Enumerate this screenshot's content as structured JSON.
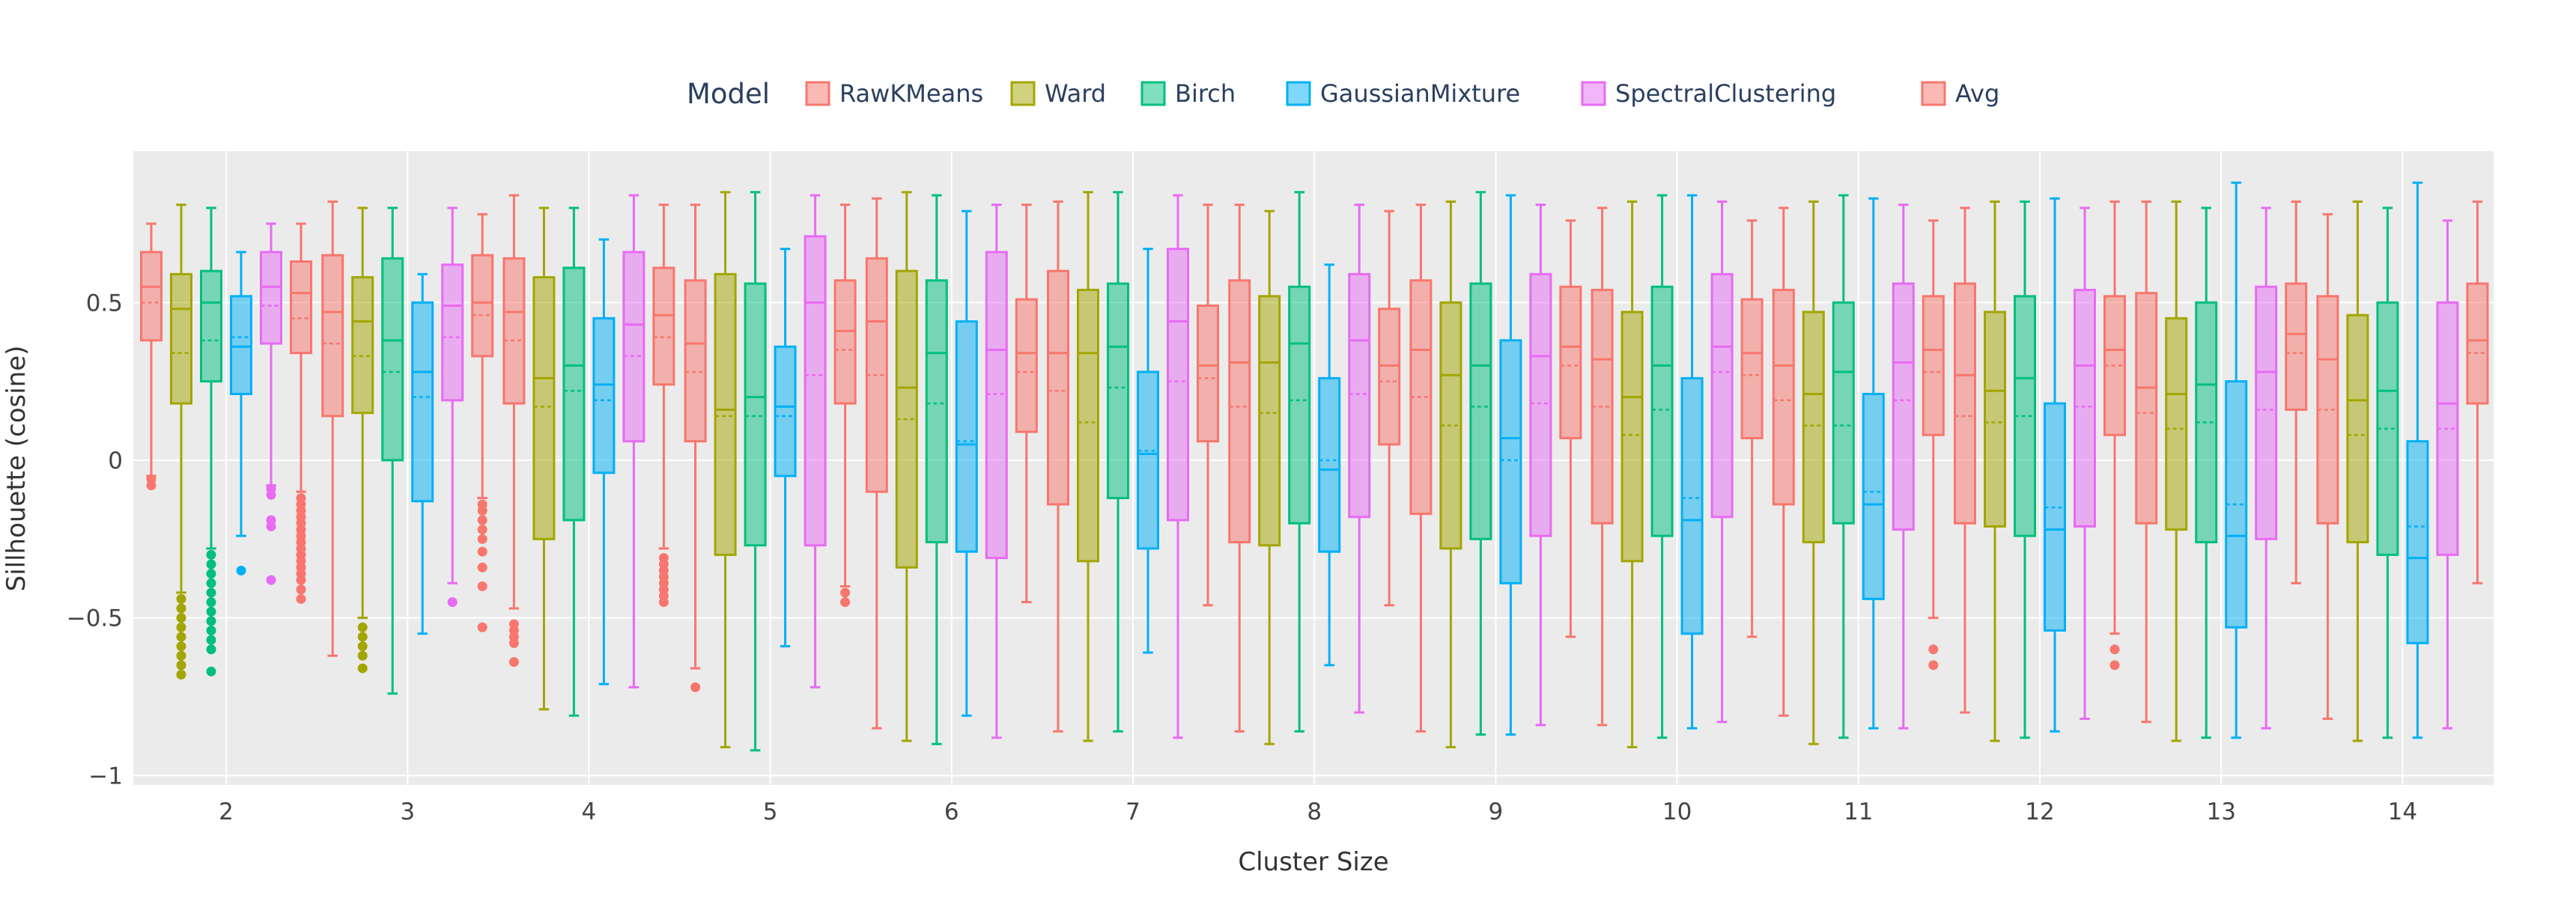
{
  "chart_data": {
    "type": "box",
    "xlabel": "Cluster Size",
    "ylabel": "Sillhouette (cosine)",
    "legend_title": "Model",
    "legend_position": "top",
    "ylim": [
      -1.03,
      0.98
    ],
    "yticks": [
      -1,
      -0.5,
      0,
      0.5
    ],
    "ytick_labels": [
      "−1",
      "−0.5",
      "0",
      "0.5"
    ],
    "grid": true,
    "background_color": "#EBEBEB",
    "categories": [
      "2",
      "3",
      "4",
      "5",
      "6",
      "7",
      "8",
      "9",
      "10",
      "11",
      "12",
      "13",
      "14"
    ],
    "series": [
      {
        "name": "RawKMeans",
        "color": "#F8766D",
        "boxes": [
          {
            "lower": -0.05,
            "q1": 0.38,
            "median": 0.55,
            "q3": 0.66,
            "upper": 0.75,
            "mean": 0.5,
            "outliers": [
              -0.06,
              -0.08
            ]
          },
          {
            "lower": -0.62,
            "q1": 0.14,
            "median": 0.47,
            "q3": 0.65,
            "upper": 0.82,
            "mean": 0.37,
            "outliers": []
          },
          {
            "lower": -0.47,
            "q1": 0.18,
            "median": 0.47,
            "q3": 0.64,
            "upper": 0.84,
            "mean": 0.38,
            "outliers": [
              -0.52,
              -0.54,
              -0.56,
              -0.58,
              -0.64
            ]
          },
          {
            "lower": -0.66,
            "q1": 0.06,
            "median": 0.37,
            "q3": 0.57,
            "upper": 0.81,
            "mean": 0.28,
            "outliers": [
              -0.72
            ]
          },
          {
            "lower": -0.85,
            "q1": -0.1,
            "median": 0.44,
            "q3": 0.64,
            "upper": 0.83,
            "mean": 0.27,
            "outliers": []
          },
          {
            "lower": -0.86,
            "q1": -0.14,
            "median": 0.34,
            "q3": 0.6,
            "upper": 0.82,
            "mean": 0.22,
            "outliers": []
          },
          {
            "lower": -0.86,
            "q1": -0.26,
            "median": 0.31,
            "q3": 0.57,
            "upper": 0.81,
            "mean": 0.17,
            "outliers": []
          },
          {
            "lower": -0.86,
            "q1": -0.17,
            "median": 0.35,
            "q3": 0.57,
            "upper": 0.81,
            "mean": 0.2,
            "outliers": []
          },
          {
            "lower": -0.84,
            "q1": -0.2,
            "median": 0.32,
            "q3": 0.54,
            "upper": 0.8,
            "mean": 0.17,
            "outliers": []
          },
          {
            "lower": -0.81,
            "q1": -0.14,
            "median": 0.3,
            "q3": 0.54,
            "upper": 0.8,
            "mean": 0.19,
            "outliers": []
          },
          {
            "lower": -0.8,
            "q1": -0.2,
            "median": 0.27,
            "q3": 0.56,
            "upper": 0.8,
            "mean": 0.14,
            "outliers": []
          },
          {
            "lower": -0.83,
            "q1": -0.2,
            "median": 0.23,
            "q3": 0.53,
            "upper": 0.82,
            "mean": 0.15,
            "outliers": []
          },
          {
            "lower": -0.82,
            "q1": -0.2,
            "median": 0.32,
            "q3": 0.52,
            "upper": 0.78,
            "mean": 0.16,
            "outliers": []
          }
        ]
      },
      {
        "name": "Ward",
        "color": "#A3A500",
        "boxes": [
          {
            "lower": -0.42,
            "q1": 0.18,
            "median": 0.48,
            "q3": 0.59,
            "upper": 0.81,
            "mean": 0.34,
            "outliers": [
              -0.44,
              -0.47,
              -0.5,
              -0.53,
              -0.56,
              -0.59,
              -0.62,
              -0.65,
              -0.68
            ]
          },
          {
            "lower": -0.5,
            "q1": 0.15,
            "median": 0.44,
            "q3": 0.58,
            "upper": 0.8,
            "mean": 0.33,
            "outliers": [
              -0.53,
              -0.56,
              -0.59,
              -0.62,
              -0.66
            ]
          },
          {
            "lower": -0.79,
            "q1": -0.25,
            "median": 0.26,
            "q3": 0.58,
            "upper": 0.8,
            "mean": 0.17,
            "outliers": []
          },
          {
            "lower": -0.91,
            "q1": -0.3,
            "median": 0.16,
            "q3": 0.59,
            "upper": 0.85,
            "mean": 0.14,
            "outliers": []
          },
          {
            "lower": -0.89,
            "q1": -0.34,
            "median": 0.23,
            "q3": 0.6,
            "upper": 0.85,
            "mean": 0.13,
            "outliers": []
          },
          {
            "lower": -0.89,
            "q1": -0.32,
            "median": 0.34,
            "q3": 0.54,
            "upper": 0.85,
            "mean": 0.12,
            "outliers": []
          },
          {
            "lower": -0.9,
            "q1": -0.27,
            "median": 0.31,
            "q3": 0.52,
            "upper": 0.79,
            "mean": 0.15,
            "outliers": []
          },
          {
            "lower": -0.91,
            "q1": -0.28,
            "median": 0.27,
            "q3": 0.5,
            "upper": 0.82,
            "mean": 0.11,
            "outliers": []
          },
          {
            "lower": -0.91,
            "q1": -0.32,
            "median": 0.2,
            "q3": 0.47,
            "upper": 0.82,
            "mean": 0.08,
            "outliers": []
          },
          {
            "lower": -0.9,
            "q1": -0.26,
            "median": 0.21,
            "q3": 0.47,
            "upper": 0.82,
            "mean": 0.11,
            "outliers": []
          },
          {
            "lower": -0.89,
            "q1": -0.21,
            "median": 0.22,
            "q3": 0.47,
            "upper": 0.82,
            "mean": 0.12,
            "outliers": []
          },
          {
            "lower": -0.89,
            "q1": -0.22,
            "median": 0.21,
            "q3": 0.45,
            "upper": 0.82,
            "mean": 0.1,
            "outliers": []
          },
          {
            "lower": -0.89,
            "q1": -0.26,
            "median": 0.19,
            "q3": 0.46,
            "upper": 0.82,
            "mean": 0.08,
            "outliers": []
          }
        ]
      },
      {
        "name": "Birch",
        "color": "#00BF7D",
        "boxes": [
          {
            "lower": -0.28,
            "q1": 0.25,
            "median": 0.5,
            "q3": 0.6,
            "upper": 0.8,
            "mean": 0.38,
            "outliers": [
              -0.3,
              -0.33,
              -0.36,
              -0.39,
              -0.42,
              -0.45,
              -0.48,
              -0.51,
              -0.54,
              -0.57,
              -0.6,
              -0.67
            ]
          },
          {
            "lower": -0.74,
            "q1": 0.0,
            "median": 0.38,
            "q3": 0.64,
            "upper": 0.8,
            "mean": 0.28,
            "outliers": []
          },
          {
            "lower": -0.81,
            "q1": -0.19,
            "median": 0.3,
            "q3": 0.61,
            "upper": 0.8,
            "mean": 0.22,
            "outliers": []
          },
          {
            "lower": -0.92,
            "q1": -0.27,
            "median": 0.2,
            "q3": 0.56,
            "upper": 0.85,
            "mean": 0.14,
            "outliers": []
          },
          {
            "lower": -0.9,
            "q1": -0.26,
            "median": 0.34,
            "q3": 0.57,
            "upper": 0.84,
            "mean": 0.18,
            "outliers": []
          },
          {
            "lower": -0.86,
            "q1": -0.12,
            "median": 0.36,
            "q3": 0.56,
            "upper": 0.85,
            "mean": 0.23,
            "outliers": []
          },
          {
            "lower": -0.86,
            "q1": -0.2,
            "median": 0.37,
            "q3": 0.55,
            "upper": 0.85,
            "mean": 0.19,
            "outliers": []
          },
          {
            "lower": -0.87,
            "q1": -0.25,
            "median": 0.3,
            "q3": 0.56,
            "upper": 0.85,
            "mean": 0.17,
            "outliers": []
          },
          {
            "lower": -0.88,
            "q1": -0.24,
            "median": 0.3,
            "q3": 0.55,
            "upper": 0.84,
            "mean": 0.16,
            "outliers": []
          },
          {
            "lower": -0.88,
            "q1": -0.2,
            "median": 0.28,
            "q3": 0.5,
            "upper": 0.84,
            "mean": 0.11,
            "outliers": []
          },
          {
            "lower": -0.88,
            "q1": -0.24,
            "median": 0.26,
            "q3": 0.52,
            "upper": 0.82,
            "mean": 0.14,
            "outliers": []
          },
          {
            "lower": -0.88,
            "q1": -0.26,
            "median": 0.24,
            "q3": 0.5,
            "upper": 0.8,
            "mean": 0.12,
            "outliers": []
          },
          {
            "lower": -0.88,
            "q1": -0.3,
            "median": 0.22,
            "q3": 0.5,
            "upper": 0.8,
            "mean": 0.1,
            "outliers": []
          }
        ]
      },
      {
        "name": "GaussianMixture",
        "color": "#00B0F6",
        "boxes": [
          {
            "lower": -0.24,
            "q1": 0.21,
            "median": 0.36,
            "q3": 0.52,
            "upper": 0.66,
            "mean": 0.39,
            "outliers": [
              -0.35
            ]
          },
          {
            "lower": -0.55,
            "q1": -0.13,
            "median": 0.28,
            "q3": 0.5,
            "upper": 0.59,
            "mean": 0.2,
            "outliers": []
          },
          {
            "lower": -0.71,
            "q1": -0.04,
            "median": 0.24,
            "q3": 0.45,
            "upper": 0.7,
            "mean": 0.19,
            "outliers": []
          },
          {
            "lower": -0.59,
            "q1": -0.05,
            "median": 0.17,
            "q3": 0.36,
            "upper": 0.67,
            "mean": 0.14,
            "outliers": []
          },
          {
            "lower": -0.81,
            "q1": -0.29,
            "median": 0.05,
            "q3": 0.44,
            "upper": 0.79,
            "mean": 0.06,
            "outliers": []
          },
          {
            "lower": -0.61,
            "q1": -0.28,
            "median": 0.02,
            "q3": 0.28,
            "upper": 0.67,
            "mean": 0.03,
            "outliers": []
          },
          {
            "lower": -0.65,
            "q1": -0.29,
            "median": -0.03,
            "q3": 0.26,
            "upper": 0.62,
            "mean": 0.0,
            "outliers": []
          },
          {
            "lower": -0.87,
            "q1": -0.39,
            "median": 0.07,
            "q3": 0.38,
            "upper": 0.84,
            "mean": 0.0,
            "outliers": []
          },
          {
            "lower": -0.85,
            "q1": -0.55,
            "median": -0.19,
            "q3": 0.26,
            "upper": 0.84,
            "mean": -0.12,
            "outliers": []
          },
          {
            "lower": -0.85,
            "q1": -0.44,
            "median": -0.14,
            "q3": 0.21,
            "upper": 0.83,
            "mean": -0.1,
            "outliers": []
          },
          {
            "lower": -0.86,
            "q1": -0.54,
            "median": -0.22,
            "q3": 0.18,
            "upper": 0.83,
            "mean": -0.15,
            "outliers": []
          },
          {
            "lower": -0.88,
            "q1": -0.53,
            "median": -0.24,
            "q3": 0.25,
            "upper": 0.88,
            "mean": -0.14,
            "outliers": []
          },
          {
            "lower": -0.88,
            "q1": -0.58,
            "median": -0.31,
            "q3": 0.06,
            "upper": 0.88,
            "mean": -0.21,
            "outliers": []
          }
        ]
      },
      {
        "name": "SpectralClustering",
        "color": "#E76BF3",
        "boxes": [
          {
            "lower": -0.08,
            "q1": 0.37,
            "median": 0.55,
            "q3": 0.66,
            "upper": 0.75,
            "mean": 0.49,
            "outliers": [
              -0.09,
              -0.11,
              -0.19,
              -0.21,
              -0.38
            ]
          },
          {
            "lower": -0.39,
            "q1": 0.19,
            "median": 0.49,
            "q3": 0.62,
            "upper": 0.8,
            "mean": 0.39,
            "outliers": [
              -0.45
            ]
          },
          {
            "lower": -0.72,
            "q1": 0.06,
            "median": 0.43,
            "q3": 0.66,
            "upper": 0.84,
            "mean": 0.33,
            "outliers": []
          },
          {
            "lower": -0.72,
            "q1": -0.27,
            "median": 0.5,
            "q3": 0.71,
            "upper": 0.84,
            "mean": 0.27,
            "outliers": []
          },
          {
            "lower": -0.88,
            "q1": -0.31,
            "median": 0.35,
            "q3": 0.66,
            "upper": 0.81,
            "mean": 0.21,
            "outliers": []
          },
          {
            "lower": -0.88,
            "q1": -0.19,
            "median": 0.44,
            "q3": 0.67,
            "upper": 0.84,
            "mean": 0.25,
            "outliers": []
          },
          {
            "lower": -0.8,
            "q1": -0.18,
            "median": 0.38,
            "q3": 0.59,
            "upper": 0.81,
            "mean": 0.21,
            "outliers": []
          },
          {
            "lower": -0.84,
            "q1": -0.24,
            "median": 0.33,
            "q3": 0.59,
            "upper": 0.81,
            "mean": 0.18,
            "outliers": []
          },
          {
            "lower": -0.83,
            "q1": -0.18,
            "median": 0.36,
            "q3": 0.59,
            "upper": 0.82,
            "mean": 0.28,
            "outliers": []
          },
          {
            "lower": -0.85,
            "q1": -0.22,
            "median": 0.31,
            "q3": 0.56,
            "upper": 0.81,
            "mean": 0.19,
            "outliers": []
          },
          {
            "lower": -0.82,
            "q1": -0.21,
            "median": 0.3,
            "q3": 0.54,
            "upper": 0.8,
            "mean": 0.17,
            "outliers": []
          },
          {
            "lower": -0.85,
            "q1": -0.25,
            "median": 0.28,
            "q3": 0.55,
            "upper": 0.8,
            "mean": 0.16,
            "outliers": []
          },
          {
            "lower": -0.85,
            "q1": -0.3,
            "median": 0.18,
            "q3": 0.5,
            "upper": 0.76,
            "mean": 0.1,
            "outliers": []
          }
        ]
      },
      {
        "name": "Avg",
        "color": "#F8766D",
        "boxes": [
          {
            "lower": -0.1,
            "q1": 0.34,
            "median": 0.53,
            "q3": 0.63,
            "upper": 0.75,
            "mean": 0.45,
            "outliers": [
              -0.12,
              -0.14,
              -0.16,
              -0.18,
              -0.2,
              -0.22,
              -0.24,
              -0.26,
              -0.28,
              -0.3,
              -0.32,
              -0.34,
              -0.36,
              -0.38,
              -0.41,
              -0.44
            ]
          },
          {
            "lower": -0.12,
            "q1": 0.33,
            "median": 0.5,
            "q3": 0.65,
            "upper": 0.78,
            "mean": 0.46,
            "outliers": [
              -0.14,
              -0.16,
              -0.19,
              -0.22,
              -0.25,
              -0.29,
              -0.34,
              -0.4,
              -0.53
            ]
          },
          {
            "lower": -0.28,
            "q1": 0.24,
            "median": 0.46,
            "q3": 0.61,
            "upper": 0.81,
            "mean": 0.39,
            "outliers": [
              -0.31,
              -0.33,
              -0.35,
              -0.37,
              -0.39,
              -0.41,
              -0.43,
              -0.45
            ]
          },
          {
            "lower": -0.4,
            "q1": 0.18,
            "median": 0.41,
            "q3": 0.57,
            "upper": 0.81,
            "mean": 0.35,
            "outliers": [
              -0.42,
              -0.45
            ]
          },
          {
            "lower": -0.45,
            "q1": 0.09,
            "median": 0.34,
            "q3": 0.51,
            "upper": 0.81,
            "mean": 0.28,
            "outliers": []
          },
          {
            "lower": -0.46,
            "q1": 0.06,
            "median": 0.3,
            "q3": 0.49,
            "upper": 0.81,
            "mean": 0.26,
            "outliers": []
          },
          {
            "lower": -0.46,
            "q1": 0.05,
            "median": 0.3,
            "q3": 0.48,
            "upper": 0.79,
            "mean": 0.25,
            "outliers": []
          },
          {
            "lower": -0.56,
            "q1": 0.07,
            "median": 0.36,
            "q3": 0.55,
            "upper": 0.76,
            "mean": 0.3,
            "outliers": []
          },
          {
            "lower": -0.56,
            "q1": 0.07,
            "median": 0.34,
            "q3": 0.51,
            "upper": 0.76,
            "mean": 0.27,
            "outliers": []
          },
          {
            "lower": -0.5,
            "q1": 0.08,
            "median": 0.35,
            "q3": 0.52,
            "upper": 0.76,
            "mean": 0.28,
            "outliers": [
              -0.6,
              -0.65
            ]
          },
          {
            "lower": -0.55,
            "q1": 0.08,
            "median": 0.35,
            "q3": 0.52,
            "upper": 0.82,
            "mean": 0.3,
            "outliers": [
              -0.6,
              -0.65
            ]
          },
          {
            "lower": -0.39,
            "q1": 0.16,
            "median": 0.4,
            "q3": 0.56,
            "upper": 0.82,
            "mean": 0.34,
            "outliers": []
          },
          {
            "lower": -0.39,
            "q1": 0.18,
            "median": 0.38,
            "q3": 0.56,
            "upper": 0.82,
            "mean": 0.34,
            "outliers": []
          }
        ]
      }
    ]
  }
}
